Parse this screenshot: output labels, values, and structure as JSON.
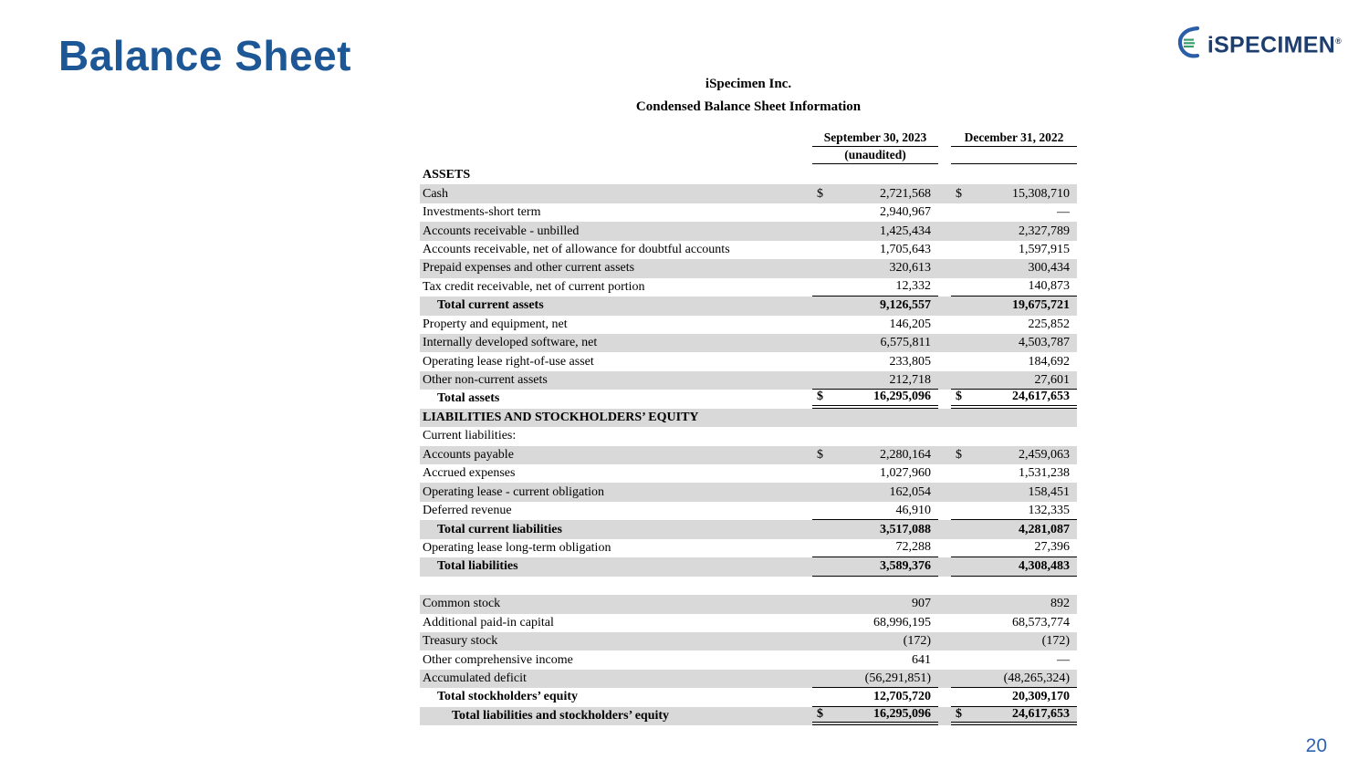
{
  "slide": {
    "title": "Balance Sheet",
    "page_number": "20"
  },
  "logo": {
    "text": "iSPECIMEN",
    "registered_mark": "®",
    "navy": "#1d3e6e",
    "blue": "#2a5ea8",
    "green": "#3aa06b"
  },
  "colors": {
    "title_blue": "#1e5796",
    "row_shading": "#d9d9d9",
    "page_number_blue": "#2e63ad"
  },
  "table": {
    "company": "iSpecimen Inc.",
    "subtitle": "Condensed Balance Sheet Information",
    "columns": {
      "col1_header": "September 30, 2023",
      "col1_subheader": "(unaudited)",
      "col2_header": "December 31, 2022"
    },
    "rows": [
      {
        "label": "ASSETS",
        "v1": "",
        "v2": "",
        "shaded": false,
        "bold": true,
        "indent": 0,
        "border": ""
      },
      {
        "label": "Cash",
        "d1": "$",
        "v1": "2,721,568",
        "d2": "$",
        "v2": "15,308,710",
        "shaded": true,
        "bold": false,
        "indent": 0,
        "border": ""
      },
      {
        "label": "Investments-short term",
        "v1": "2,940,967",
        "v2": "—",
        "shaded": false,
        "bold": false,
        "indent": 0,
        "border": ""
      },
      {
        "label": "Accounts receivable - unbilled",
        "v1": "1,425,434",
        "v2": "2,327,789",
        "shaded": true,
        "bold": false,
        "indent": 0,
        "border": ""
      },
      {
        "label": "Accounts receivable, net of allowance for doubtful accounts",
        "v1": "1,705,643",
        "v2": "1,597,915",
        "shaded": false,
        "bold": false,
        "indent": 0,
        "border": ""
      },
      {
        "label": "Prepaid expenses and other current assets",
        "v1": "320,613",
        "v2": "300,434",
        "shaded": true,
        "bold": false,
        "indent": 0,
        "border": ""
      },
      {
        "label": "Tax credit receivable, net of current portion",
        "v1": "12,332",
        "v2": "140,873",
        "shaded": false,
        "bold": false,
        "indent": 0,
        "border": "single"
      },
      {
        "label": "Total current assets",
        "v1": "9,126,557",
        "v2": "19,675,721",
        "shaded": true,
        "bold": true,
        "indent": 1,
        "border": ""
      },
      {
        "label": "Property and equipment, net",
        "v1": "146,205",
        "v2": "225,852",
        "shaded": false,
        "bold": false,
        "indent": 0,
        "border": ""
      },
      {
        "label": "Internally developed software, net",
        "v1": "6,575,811",
        "v2": "4,503,787",
        "shaded": true,
        "bold": false,
        "indent": 0,
        "border": ""
      },
      {
        "label": "Operating lease right-of-use asset",
        "v1": "233,805",
        "v2": "184,692",
        "shaded": false,
        "bold": false,
        "indent": 0,
        "border": ""
      },
      {
        "label": "Other non-current assets",
        "v1": "212,718",
        "v2": "27,601",
        "shaded": true,
        "bold": false,
        "indent": 0,
        "border": "single"
      },
      {
        "label": "Total assets",
        "d1": "$",
        "v1": "16,295,096",
        "d2": "$",
        "v2": "24,617,653",
        "shaded": false,
        "bold": true,
        "indent": 1,
        "border": "double"
      },
      {
        "label": "LIABILITIES AND STOCKHOLDERS’ EQUITY",
        "v1": "",
        "v2": "",
        "shaded": true,
        "bold": true,
        "indent": 0,
        "border": ""
      },
      {
        "label": "Current liabilities:",
        "v1": "",
        "v2": "",
        "shaded": false,
        "bold": false,
        "indent": 0,
        "border": ""
      },
      {
        "label": "Accounts payable",
        "d1": "$",
        "v1": "2,280,164",
        "d2": "$",
        "v2": "2,459,063",
        "shaded": true,
        "bold": false,
        "indent": 0,
        "border": ""
      },
      {
        "label": "Accrued expenses",
        "v1": "1,027,960",
        "v2": "1,531,238",
        "shaded": false,
        "bold": false,
        "indent": 0,
        "border": ""
      },
      {
        "label": "Operating lease - current obligation",
        "v1": "162,054",
        "v2": "158,451",
        "shaded": true,
        "bold": false,
        "indent": 0,
        "border": ""
      },
      {
        "label": "Deferred revenue",
        "v1": "46,910",
        "v2": "132,335",
        "shaded": false,
        "bold": false,
        "indent": 0,
        "border": "single"
      },
      {
        "label": "Total current liabilities",
        "v1": "3,517,088",
        "v2": "4,281,087",
        "shaded": true,
        "bold": true,
        "indent": 1,
        "border": ""
      },
      {
        "label": "Operating lease long-term obligation",
        "v1": "72,288",
        "v2": "27,396",
        "shaded": false,
        "bold": false,
        "indent": 0,
        "border": "single"
      },
      {
        "label": "Total liabilities",
        "v1": "3,589,376",
        "v2": "4,308,483",
        "shaded": true,
        "bold": true,
        "indent": 1,
        "border": "single"
      },
      {
        "label": "",
        "v1": "",
        "v2": "",
        "shaded": false,
        "bold": false,
        "indent": 0,
        "border": "",
        "spacer": true
      },
      {
        "label": "Common stock",
        "v1": "907",
        "v2": "892",
        "shaded": true,
        "bold": false,
        "indent": 0,
        "border": ""
      },
      {
        "label": "Additional paid-in capital",
        "v1": "68,996,195",
        "v2": "68,573,774",
        "shaded": false,
        "bold": false,
        "indent": 0,
        "border": ""
      },
      {
        "label": "Treasury stock",
        "v1": "(172)",
        "v2": "(172)",
        "shaded": true,
        "bold": false,
        "indent": 0,
        "border": ""
      },
      {
        "label": "Other comprehensive income",
        "v1": "641",
        "v2": "—",
        "shaded": false,
        "bold": false,
        "indent": 0,
        "border": ""
      },
      {
        "label": "Accumulated deficit",
        "v1": "(56,291,851)",
        "v2": "(48,265,324)",
        "shaded": true,
        "bold": false,
        "indent": 0,
        "border": "single"
      },
      {
        "label": "Total stockholders’ equity",
        "v1": "12,705,720",
        "v2": "20,309,170",
        "shaded": false,
        "bold": true,
        "indent": 1,
        "border": "single"
      },
      {
        "label": "Total liabilities and stockholders’ equity",
        "d1": "$",
        "v1": "16,295,096",
        "d2": "$",
        "v2": "24,617,653",
        "shaded": true,
        "bold": true,
        "indent": 2,
        "border": "double"
      }
    ]
  }
}
